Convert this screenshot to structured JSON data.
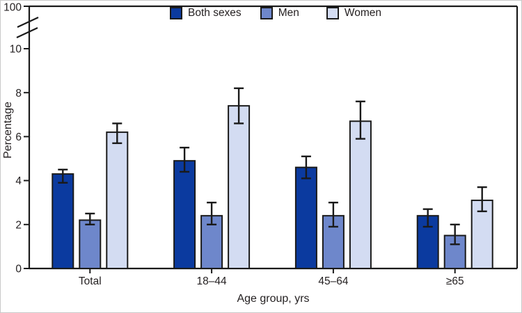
{
  "chart_data": {
    "type": "bar",
    "title": "",
    "categories": [
      "Total",
      "18–44",
      "45–64",
      "≥65"
    ],
    "series": [
      {
        "name": "Both sexes",
        "color": "#0b3a9f",
        "values": [
          4.3,
          4.9,
          4.6,
          2.4
        ],
        "ci_low": [
          3.9,
          4.4,
          4.1,
          1.9
        ],
        "ci_high": [
          4.5,
          5.5,
          5.1,
          2.7
        ]
      },
      {
        "name": "Men",
        "color": "#6e87cb",
        "values": [
          2.2,
          2.4,
          2.4,
          1.5
        ],
        "ci_low": [
          2.0,
          2.0,
          1.9,
          1.1
        ],
        "ci_high": [
          2.5,
          3.0,
          3.0,
          2.0
        ]
      },
      {
        "name": "Women",
        "color": "#d3dcf2",
        "values": [
          6.2,
          7.4,
          6.7,
          3.1
        ],
        "ci_low": [
          5.7,
          6.6,
          5.9,
          2.6
        ],
        "ci_high": [
          6.6,
          8.2,
          7.6,
          3.7
        ]
      }
    ],
    "xlabel": "Age group, yrs",
    "ylabel": "Percentage",
    "y_ticks": [
      0,
      2,
      4,
      6,
      8,
      10
    ],
    "ylim": [
      0,
      10.7
    ],
    "axis_break": {
      "upper_label": "100"
    },
    "error_bars": true,
    "legend_position": "top",
    "grid": false,
    "frame": true,
    "line_color": "#1a1a1a"
  }
}
